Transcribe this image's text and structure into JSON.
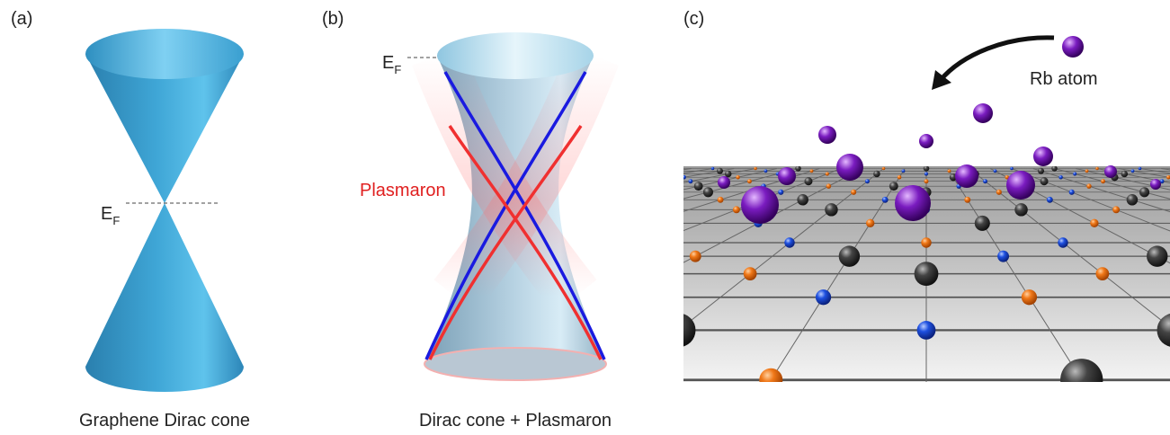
{
  "panels": [
    {
      "label": "(a)",
      "fermi_level": {
        "main": "E",
        "sub": "F"
      },
      "caption": "Graphene Dirac cone"
    },
    {
      "label": "(b)",
      "fermi_level": {
        "main": "E",
        "sub": "F"
      },
      "annotation": "Plasmaron",
      "caption": "Dirac cone + Plasmaron"
    },
    {
      "label": "(c)",
      "annotation": "Rb atom"
    }
  ]
}
